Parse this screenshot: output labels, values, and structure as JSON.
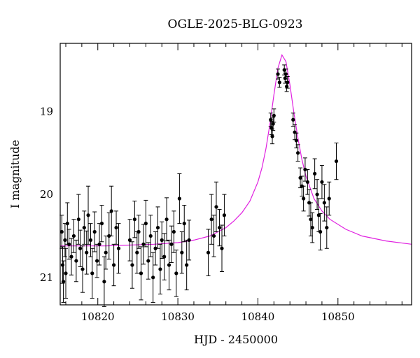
{
  "chart_data": {
    "type": "scatter",
    "title": "OGLE-2025-BLG-0923",
    "xlabel": "HJD - 2450000",
    "ylabel": "I magnitude",
    "xlim": [
      10815.3,
      10859.2
    ],
    "ylim": [
      21.33,
      18.18
    ],
    "y_inverted": true,
    "x_major_ticks": [
      10820,
      10830,
      10840,
      10850
    ],
    "x_tick_labels": [
      "10820",
      "10830",
      "10840",
      "10850"
    ],
    "y_major_ticks": [
      19,
      20,
      21
    ],
    "y_tick_labels": [
      "19",
      "20",
      "21"
    ],
    "grid": false,
    "legend": "none",
    "colors": {
      "data": "#000000",
      "model": "#e020e0"
    },
    "series": [
      {
        "kind": "points_with_errors",
        "points": [
          [
            10815.5,
            20.45,
            0.2
          ],
          [
            10815.6,
            20.85,
            0.22
          ],
          [
            10815.7,
            21.05,
            0.25
          ],
          [
            10815.9,
            20.55,
            0.2
          ],
          [
            10816.0,
            20.95,
            0.3
          ],
          [
            10816.2,
            20.35,
            0.25
          ],
          [
            10816.4,
            20.6,
            0.18
          ],
          [
            10816.7,
            20.75,
            0.22
          ],
          [
            10817.0,
            20.5,
            0.2
          ],
          [
            10817.3,
            20.8,
            0.25
          ],
          [
            10817.6,
            20.3,
            0.3
          ],
          [
            10817.8,
            20.65,
            0.22
          ],
          [
            10818.1,
            20.9,
            0.28
          ],
          [
            10818.3,
            20.4,
            0.2
          ],
          [
            10818.6,
            20.7,
            0.26
          ],
          [
            10818.8,
            20.25,
            0.35
          ],
          [
            10819.1,
            20.55,
            0.2
          ],
          [
            10819.3,
            20.95,
            0.3
          ],
          [
            10819.6,
            20.45,
            0.24
          ],
          [
            10819.9,
            20.8,
            0.2
          ],
          [
            10820.2,
            20.6,
            0.25
          ],
          [
            10820.5,
            20.35,
            0.22
          ],
          [
            10820.8,
            21.05,
            0.3
          ],
          [
            10821.0,
            20.7,
            0.2
          ],
          [
            10821.4,
            20.5,
            0.28
          ],
          [
            10821.7,
            20.2,
            0.3
          ],
          [
            10822.0,
            20.85,
            0.25
          ],
          [
            10822.3,
            20.4,
            0.2
          ],
          [
            10822.6,
            20.65,
            0.3
          ],
          [
            10824.0,
            20.55,
            0.25
          ],
          [
            10824.3,
            20.85,
            0.28
          ],
          [
            10824.6,
            20.3,
            0.22
          ],
          [
            10824.9,
            20.7,
            0.25
          ],
          [
            10825.1,
            20.45,
            0.2
          ],
          [
            10825.4,
            20.95,
            0.32
          ],
          [
            10825.7,
            20.6,
            0.24
          ],
          [
            10826.0,
            20.35,
            0.28
          ],
          [
            10826.3,
            20.8,
            0.22
          ],
          [
            10826.6,
            20.5,
            0.25
          ],
          [
            10826.9,
            21.0,
            0.3
          ],
          [
            10827.2,
            20.65,
            0.2
          ],
          [
            10827.5,
            20.4,
            0.25
          ],
          [
            10827.8,
            20.9,
            0.3
          ],
          [
            10828.0,
            20.55,
            0.22
          ],
          [
            10828.3,
            20.75,
            0.28
          ],
          [
            10828.6,
            20.3,
            0.26
          ],
          [
            10828.9,
            20.85,
            0.3
          ],
          [
            10829.2,
            20.6,
            0.22
          ],
          [
            10829.5,
            20.45,
            0.25
          ],
          [
            10829.8,
            20.95,
            0.28
          ],
          [
            10830.2,
            20.05,
            0.3
          ],
          [
            10830.5,
            20.7,
            0.25
          ],
          [
            10830.8,
            20.35,
            0.22
          ],
          [
            10831.1,
            20.85,
            0.3
          ],
          [
            10831.4,
            20.55,
            0.24
          ],
          [
            10833.8,
            20.7,
            0.28
          ],
          [
            10834.2,
            20.3,
            0.3
          ],
          [
            10834.5,
            20.5,
            0.25
          ],
          [
            10834.8,
            20.15,
            0.3
          ],
          [
            10835.2,
            20.4,
            0.22
          ],
          [
            10835.5,
            20.65,
            0.28
          ],
          [
            10835.8,
            20.25,
            0.25
          ],
          [
            10841.6,
            19.1,
            0.08
          ],
          [
            10841.7,
            19.2,
            0.08
          ],
          [
            10841.8,
            19.3,
            0.09
          ],
          [
            10841.9,
            19.15,
            0.08
          ],
          [
            10842.0,
            19.05,
            0.08
          ],
          [
            10842.5,
            18.55,
            0.06
          ],
          [
            10842.7,
            18.65,
            0.06
          ],
          [
            10843.3,
            18.5,
            0.06
          ],
          [
            10843.4,
            18.6,
            0.06
          ],
          [
            10843.5,
            18.55,
            0.06
          ],
          [
            10843.6,
            18.7,
            0.06
          ],
          [
            10843.7,
            18.65,
            0.07
          ],
          [
            10844.4,
            19.1,
            0.08
          ],
          [
            10844.6,
            19.25,
            0.09
          ],
          [
            10844.8,
            19.35,
            0.09
          ],
          [
            10845.0,
            19.5,
            0.1
          ],
          [
            10845.3,
            19.8,
            0.12
          ],
          [
            10845.5,
            19.9,
            0.12
          ],
          [
            10845.7,
            20.05,
            0.15
          ],
          [
            10845.9,
            19.7,
            0.14
          ],
          [
            10846.2,
            19.85,
            0.15
          ],
          [
            10846.4,
            20.1,
            0.16
          ],
          [
            10846.6,
            20.3,
            0.2
          ],
          [
            10846.8,
            20.4,
            0.18
          ],
          [
            10847.1,
            19.75,
            0.18
          ],
          [
            10847.4,
            20.0,
            0.18
          ],
          [
            10847.6,
            20.25,
            0.2
          ],
          [
            10847.8,
            20.45,
            0.22
          ],
          [
            10848.0,
            19.85,
            0.2
          ],
          [
            10848.3,
            20.1,
            0.22
          ],
          [
            10848.6,
            20.4,
            0.25
          ],
          [
            10848.9,
            20.05,
            0.2
          ],
          [
            10849.8,
            19.6,
            0.22
          ]
        ]
      },
      {
        "kind": "model_curve",
        "x": [
          10815.3,
          10818,
          10821,
          10824,
          10827,
          10830,
          10832,
          10834,
          10836,
          10837,
          10838,
          10839,
          10840,
          10840.5,
          10841,
          10841.5,
          10842,
          10842.5,
          10843,
          10843.5,
          10844,
          10844.5,
          10845,
          10845.5,
          10846,
          10847,
          10848,
          10849,
          10851,
          10853,
          10856,
          10859.2
        ],
        "y": [
          20.62,
          20.62,
          20.62,
          20.61,
          20.6,
          20.58,
          20.55,
          20.5,
          20.4,
          20.32,
          20.22,
          20.08,
          19.85,
          19.68,
          19.45,
          19.15,
          18.8,
          18.48,
          18.32,
          18.4,
          18.68,
          19.02,
          19.32,
          19.58,
          19.78,
          20.05,
          20.2,
          20.3,
          20.42,
          20.5,
          20.56,
          20.6
        ]
      }
    ]
  }
}
